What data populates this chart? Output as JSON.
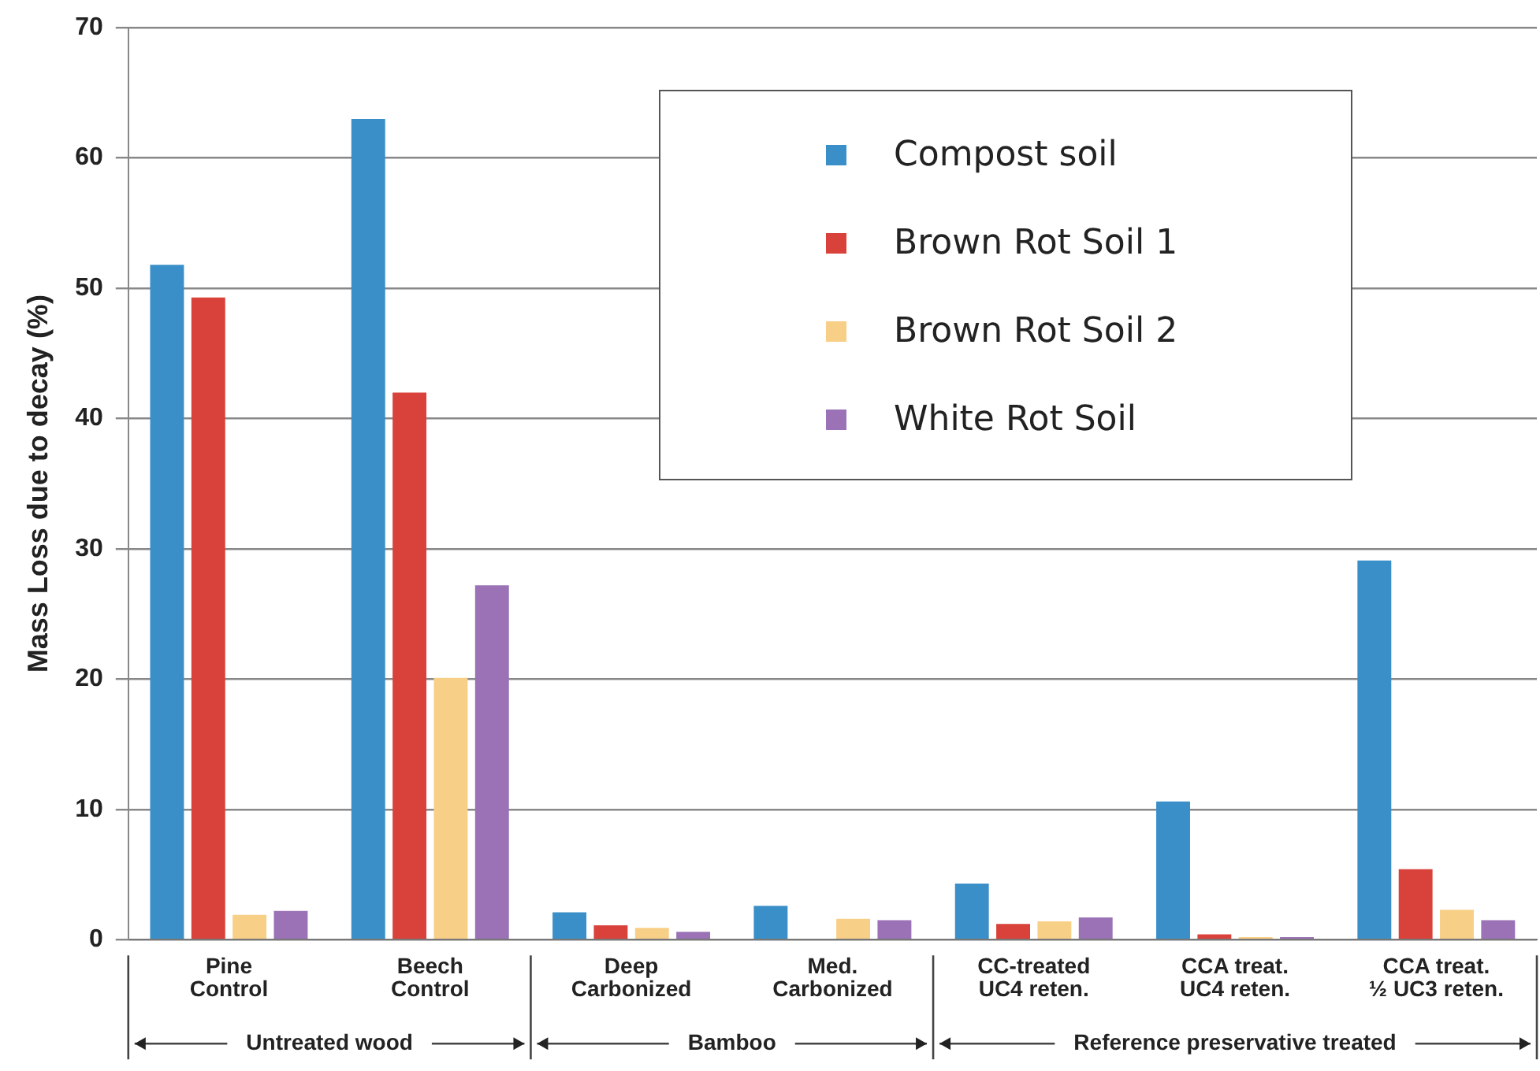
{
  "chart_data": {
    "type": "bar",
    "ylabel": "Mass Loss due to decay (%)",
    "categories": [
      "Pine Control",
      "Beech Control",
      "Deep Carbonized",
      "Med. Carbonized",
      "CC-treated UC4 reten.",
      "CCA treat. UC4 reten.",
      "CCA treat. ½ UC3 reten."
    ],
    "series": [
      {
        "name": "Compost soil",
        "color": "#3a8fc8",
        "values": [
          51.8,
          63,
          2.1,
          2.6,
          4.3,
          10.6,
          29.1
        ]
      },
      {
        "name": "Brown Rot Soil 1",
        "color": "#d9423a",
        "values": [
          49.3,
          42,
          1.1,
          0,
          1.2,
          0.4,
          5.4
        ]
      },
      {
        "name": "Brown Rot Soil 2",
        "color": "#f8cf87",
        "values": [
          1.9,
          20.1,
          0.9,
          1.6,
          1.4,
          0.2,
          2.3
        ]
      },
      {
        "name": "White Rot Soil",
        "color": "#9a72b5",
        "values": [
          2.2,
          27.2,
          0.6,
          1.5,
          1.7,
          0.2,
          1.5
        ]
      }
    ],
    "ylim": [
      0,
      70
    ],
    "yticks": [
      0,
      10,
      20,
      30,
      40,
      50,
      60,
      70
    ],
    "grid": "y",
    "legend": "top right",
    "annotations": [
      "Untreated wood",
      "Bamboo",
      "Reference preservative treated"
    ]
  }
}
